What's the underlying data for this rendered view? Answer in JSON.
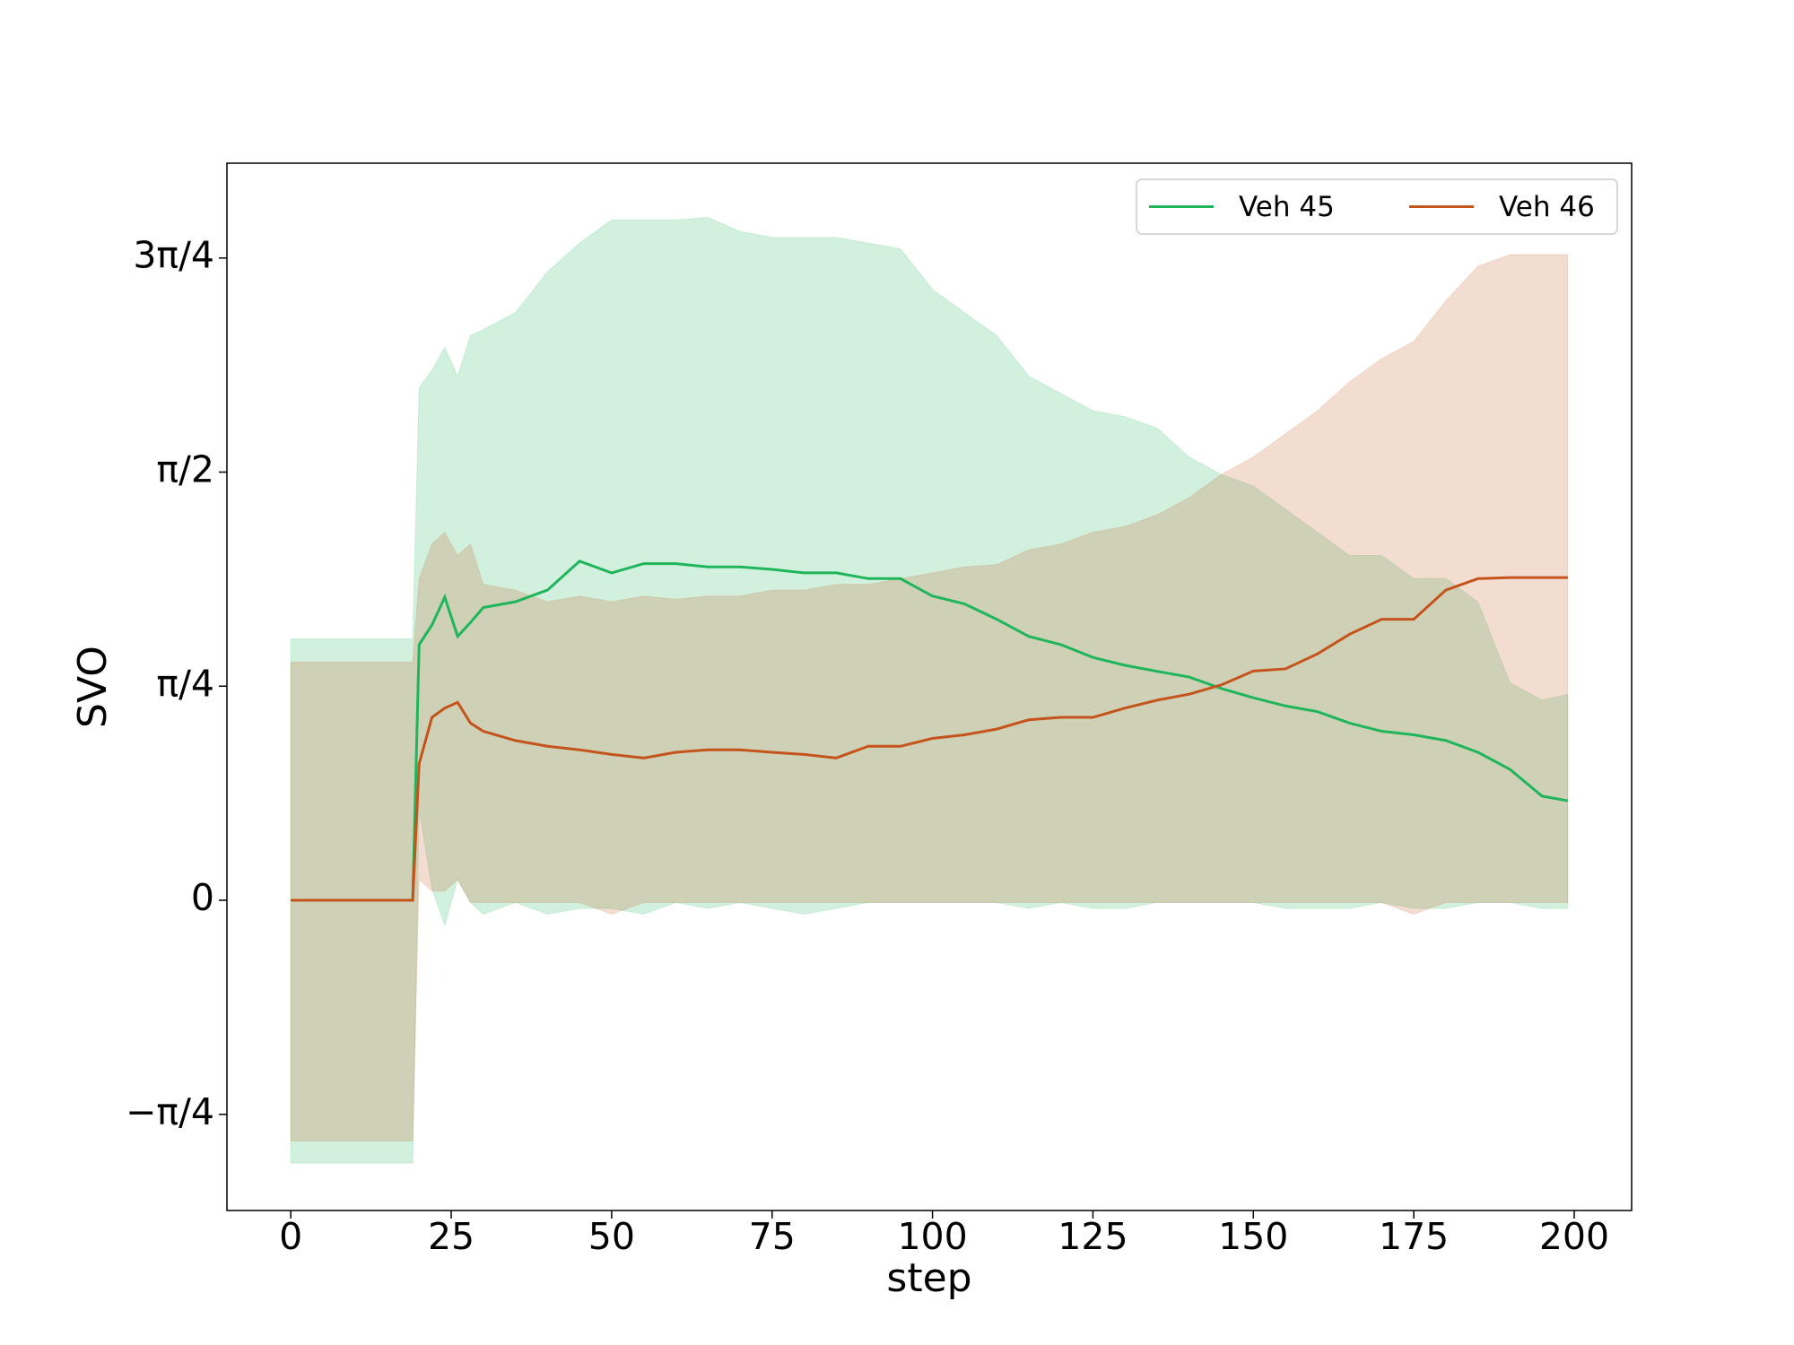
{
  "chart_data": {
    "type": "line",
    "xlabel": "step",
    "ylabel": "SVO",
    "x": [
      0,
      19,
      20,
      22,
      24,
      26,
      28,
      30,
      35,
      40,
      45,
      50,
      55,
      60,
      65,
      70,
      75,
      80,
      85,
      90,
      95,
      100,
      105,
      110,
      115,
      120,
      125,
      130,
      135,
      140,
      145,
      150,
      155,
      160,
      165,
      170,
      175,
      180,
      185,
      190,
      195,
      199
    ],
    "series": [
      {
        "name": "Veh 45",
        "color": "#1fb55b",
        "values": [
          0,
          0,
          0.938,
          1.01,
          1.112,
          0.968,
          1.019,
          1.074,
          1.095,
          1.138,
          1.244,
          1.201,
          1.235,
          1.235,
          1.223,
          1.223,
          1.214,
          1.201,
          1.201,
          1.18,
          1.18,
          1.116,
          1.087,
          1.031,
          0.968,
          0.938,
          0.891,
          0.862,
          0.84,
          0.819,
          0.777,
          0.743,
          0.713,
          0.692,
          0.65,
          0.62,
          0.607,
          0.586,
          0.543,
          0.48,
          0.382,
          0.365
        ],
        "upper": [
          0.959,
          0.959,
          1.881,
          1.944,
          2.029,
          1.923,
          2.072,
          2.093,
          2.156,
          2.305,
          2.411,
          2.496,
          2.496,
          2.496,
          2.505,
          2.454,
          2.432,
          2.432,
          2.432,
          2.411,
          2.39,
          2.241,
          2.156,
          2.072,
          1.923,
          1.859,
          1.796,
          1.774,
          1.732,
          1.626,
          1.562,
          1.52,
          1.435,
          1.35,
          1.265,
          1.265,
          1.18,
          1.18,
          1.095,
          0.798,
          0.734,
          0.756
        ],
        "lower": [
          -0.964,
          -0.964,
          0.331,
          0.042,
          -0.093,
          0.076,
          -0.008,
          -0.051,
          -0.008,
          -0.051,
          -0.03,
          -0.03,
          -0.051,
          -0.008,
          -0.03,
          -0.008,
          -0.03,
          -0.051,
          -0.03,
          -0.008,
          -0.008,
          -0.008,
          -0.008,
          -0.008,
          -0.03,
          -0.008,
          -0.03,
          -0.03,
          -0.008,
          -0.008,
          -0.008,
          -0.008,
          -0.03,
          -0.03,
          -0.03,
          -0.008,
          -0.03,
          -0.03,
          -0.008,
          -0.008,
          -0.03,
          -0.03
        ]
      },
      {
        "name": "Veh 46",
        "color": "#c4541b",
        "values": [
          0,
          0,
          0.501,
          0.671,
          0.705,
          0.726,
          0.65,
          0.62,
          0.586,
          0.565,
          0.552,
          0.535,
          0.522,
          0.543,
          0.552,
          0.552,
          0.543,
          0.535,
          0.522,
          0.565,
          0.565,
          0.594,
          0.607,
          0.628,
          0.662,
          0.671,
          0.671,
          0.705,
          0.734,
          0.756,
          0.79,
          0.841,
          0.849,
          0.904,
          0.976,
          1.031,
          1.031,
          1.138,
          1.18,
          1.184,
          1.184,
          1.184
        ],
        "upper": [
          0.874,
          0.874,
          1.18,
          1.307,
          1.35,
          1.265,
          1.307,
          1.159,
          1.138,
          1.095,
          1.116,
          1.095,
          1.116,
          1.104,
          1.116,
          1.116,
          1.138,
          1.138,
          1.159,
          1.159,
          1.18,
          1.201,
          1.223,
          1.231,
          1.286,
          1.307,
          1.35,
          1.371,
          1.414,
          1.477,
          1.562,
          1.626,
          1.711,
          1.796,
          1.902,
          1.987,
          2.05,
          2.199,
          2.326,
          2.369,
          2.369,
          2.369
        ],
        "lower": [
          -0.883,
          -0.883,
          0.076,
          0.034,
          0.034,
          0.076,
          -0.008,
          -0.008,
          -0.008,
          -0.008,
          -0.008,
          -0.051,
          -0.008,
          -0.008,
          -0.008,
          -0.008,
          -0.008,
          -0.008,
          -0.008,
          -0.008,
          -0.008,
          -0.008,
          -0.008,
          -0.008,
          -0.008,
          -0.008,
          -0.008,
          -0.008,
          -0.008,
          -0.008,
          -0.008,
          -0.008,
          -0.008,
          -0.008,
          -0.008,
          -0.008,
          -0.051,
          -0.008,
          -0.008,
          -0.008,
          -0.008,
          -0.008
        ]
      }
    ],
    "xlim": [
      -9.95,
      208.95
    ],
    "xticks": [
      0,
      25,
      50,
      75,
      100,
      125,
      150,
      175,
      200
    ],
    "ylim": [
      -1.138,
      2.704
    ],
    "yticks": [
      {
        "value": -0.785398,
        "label": "−π/4"
      },
      0,
      {
        "value": 0.785398,
        "label": "π/4"
      },
      {
        "value": 1.570796,
        "label": "π/2"
      },
      {
        "value": 2.356194,
        "label": "3π/4"
      }
    ],
    "legend": "upper right",
    "grid": false
  }
}
